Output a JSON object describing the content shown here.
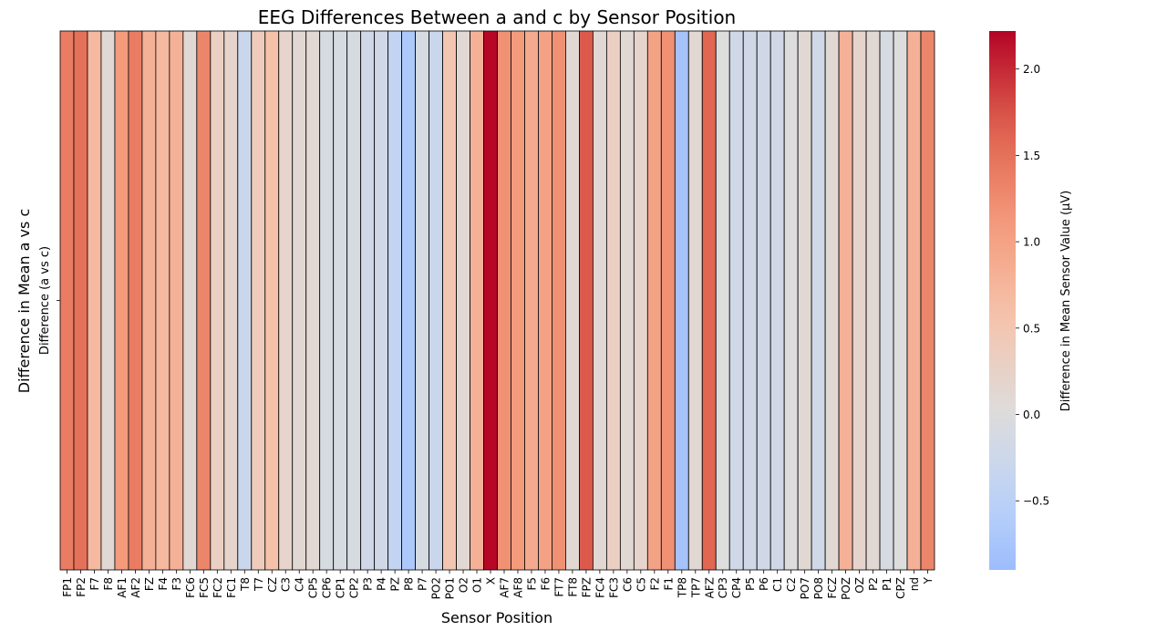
{
  "chart_data": {
    "type": "heatmap",
    "title": "EEG Differences Between a and c by Sensor Position",
    "xlabel": "Sensor Position",
    "ylabel": "Difference in Mean a vs c",
    "row_labels": [
      "Difference (a vs c)"
    ],
    "categories": [
      "FP1",
      "FP2",
      "F7",
      "F8",
      "AF1",
      "AF2",
      "FZ",
      "F4",
      "F3",
      "FC6",
      "FC5",
      "FC2",
      "FC1",
      "T8",
      "T7",
      "CZ",
      "C3",
      "C4",
      "CP5",
      "CP6",
      "CP1",
      "CP2",
      "P3",
      "P4",
      "PZ",
      "P8",
      "P7",
      "PO2",
      "PO1",
      "O2",
      "O1",
      "X",
      "AF7",
      "AF8",
      "F5",
      "F6",
      "FT7",
      "FT8",
      "FPZ",
      "FC4",
      "FC3",
      "C6",
      "C5",
      "F2",
      "F1",
      "TP8",
      "TP7",
      "AFZ",
      "CP3",
      "CP4",
      "P5",
      "P6",
      "C1",
      "C2",
      "PO7",
      "PO8",
      "FCZ",
      "POZ",
      "OZ",
      "P2",
      "P1",
      "CPZ",
      "nd",
      "Y"
    ],
    "values": [
      1.4,
      1.5,
      0.7,
      0.1,
      1.1,
      1.4,
      0.8,
      0.7,
      0.8,
      0.1,
      1.3,
      0.3,
      0.2,
      -0.3,
      0.4,
      0.6,
      0.2,
      0.1,
      0.1,
      -0.1,
      -0.1,
      -0.1,
      -0.2,
      -0.2,
      -0.4,
      -0.7,
      -0.1,
      -0.3,
      0.5,
      0.1,
      0.8,
      2.2,
      1.2,
      1.1,
      0.9,
      1.0,
      1.2,
      0.1,
      1.7,
      0.1,
      0.3,
      0.1,
      0.2,
      1.0,
      1.2,
      -0.8,
      0.1,
      1.6,
      0.0,
      -0.2,
      -0.2,
      -0.2,
      -0.2,
      0.0,
      0.1,
      -0.2,
      0.1,
      0.8,
      0.2,
      0.1,
      -0.1,
      0.0,
      0.8,
      1.3
    ],
    "vmin": -0.9,
    "vmax": 2.22,
    "colormap": "coolwarm",
    "colorbar": {
      "label": "Difference in Mean Sensor Value (μV)",
      "ticks": [
        -0.5,
        0.0,
        0.5,
        1.0,
        1.5,
        2.0
      ],
      "tick_labels": [
        "−0.5",
        "0.0",
        "0.5",
        "1.0",
        "1.5",
        "2.0"
      ]
    },
    "grid": false
  }
}
